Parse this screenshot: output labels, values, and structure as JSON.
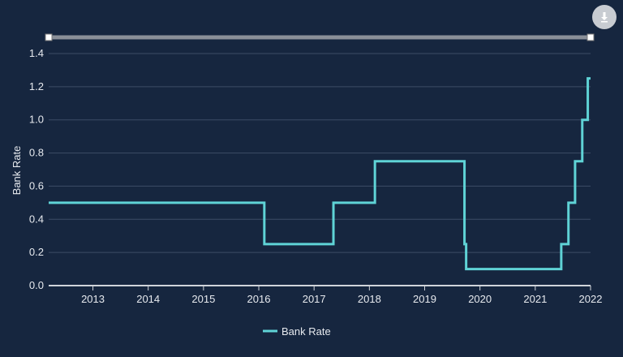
{
  "chart_data": {
    "type": "line",
    "step": true,
    "ylabel": "Bank Rate",
    "ylim": [
      0,
      1.4
    ],
    "yticks": [
      "0.0",
      "0.2",
      "0.4",
      "0.6",
      "0.8",
      "1.0",
      "1.2",
      "1.4"
    ],
    "xlim": [
      2012.2,
      2022.0
    ],
    "xticks": [
      "2013",
      "2014",
      "2015",
      "2016",
      "2017",
      "2018",
      "2019",
      "2020",
      "2021",
      "2022"
    ],
    "grid": true,
    "legend_position": "bottom-center",
    "series": [
      {
        "name": "Bank Rate",
        "color": "#5fd3d6",
        "points": [
          [
            2012.2,
            0.5
          ],
          [
            2016.1,
            0.25
          ],
          [
            2017.35,
            0.5
          ],
          [
            2018.1,
            0.75
          ],
          [
            2019.72,
            0.25
          ],
          [
            2019.75,
            0.1
          ],
          [
            2021.47,
            0.25
          ],
          [
            2021.6,
            0.5
          ],
          [
            2021.72,
            0.75
          ],
          [
            2021.85,
            1.0
          ],
          [
            2021.95,
            1.25
          ],
          [
            2022.0,
            1.25
          ]
        ]
      }
    ]
  },
  "toolbar": {
    "download_icon": "download-icon"
  },
  "colors": {
    "background": "#16263f",
    "grid": "#3c4c66",
    "series": "#5fd3d6",
    "navigator": "#8a8f98"
  }
}
